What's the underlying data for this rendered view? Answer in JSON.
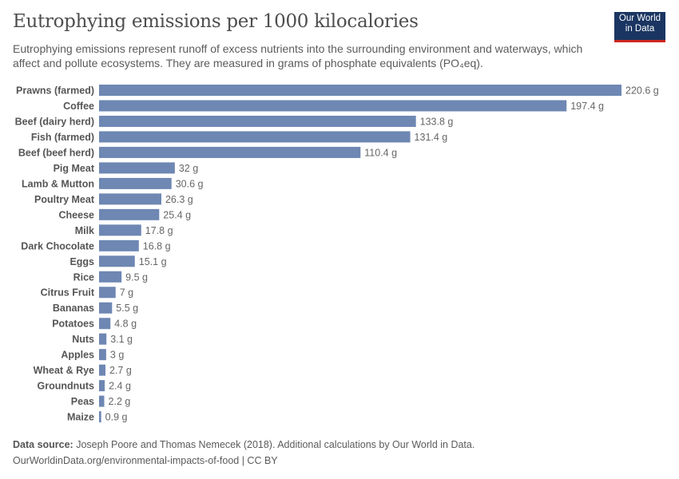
{
  "header": {
    "title": "Eutrophying emissions per 1000 kilocalories",
    "subtitle": "Eutrophying emissions represent runoff of excess nutrients into the surrounding environment and waterways, which affect and pollute ecosystems. They are measured in grams of phosphate equivalents (PO₄eq).",
    "logo": "Our World in Data"
  },
  "footer": {
    "source_label": "Data source:",
    "source_text": "Joseph Poore and Thomas Nemecek (2018). Additional calculations by Our World in Data.",
    "url_license": "OurWorldinData.org/environmental-impacts-of-food | CC BY"
  },
  "colors": {
    "bar": "#6e87b3",
    "logo_bg": "#1a3561",
    "logo_accent": "#ce261e"
  },
  "chart_data": {
    "type": "bar",
    "orientation": "horizontal",
    "unit": "g",
    "categories": [
      "Prawns (farmed)",
      "Coffee",
      "Beef (dairy herd)",
      "Fish (farmed)",
      "Beef (beef herd)",
      "Pig Meat",
      "Lamb & Mutton",
      "Poultry Meat",
      "Cheese",
      "Milk",
      "Dark Chocolate",
      "Eggs",
      "Rice",
      "Citrus Fruit",
      "Bananas",
      "Potatoes",
      "Nuts",
      "Apples",
      "Wheat & Rye",
      "Groundnuts",
      "Peas",
      "Maize"
    ],
    "values": [
      220.6,
      197.4,
      133.8,
      131.4,
      110.4,
      32,
      30.6,
      26.3,
      25.4,
      17.8,
      16.8,
      15.1,
      9.5,
      7,
      5.5,
      4.8,
      3.1,
      3,
      2.7,
      2.4,
      2.2,
      0.9
    ],
    "labels": [
      "220.6 g",
      "197.4 g",
      "133.8 g",
      "131.4 g",
      "110.4 g",
      "32 g",
      "30.6 g",
      "26.3 g",
      "25.4 g",
      "17.8 g",
      "16.8 g",
      "15.1 g",
      "9.5 g",
      "7 g",
      "5.5 g",
      "4.8 g",
      "3.1 g",
      "3 g",
      "2.7 g",
      "2.4 g",
      "2.2 g",
      "0.9 g"
    ],
    "grid": false
  }
}
